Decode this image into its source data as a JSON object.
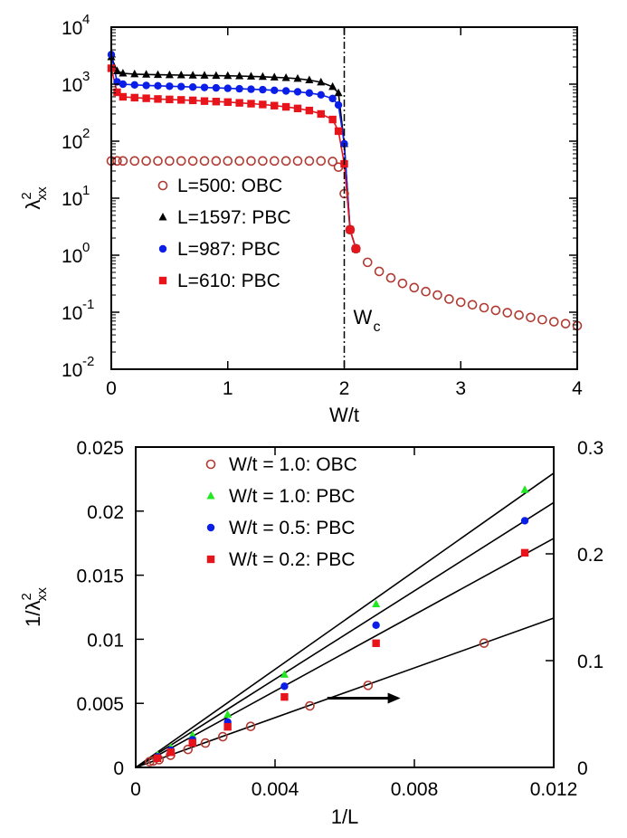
{
  "chart_data": [
    {
      "type": "scatter",
      "xlabel": "W/t",
      "ylabel": {
        "base": "λ",
        "sup": "2",
        "sub": "xx"
      },
      "xlim": [
        0,
        4
      ],
      "ylim_log10": [
        -2,
        4
      ],
      "log_y": true,
      "xticks": [
        {
          "v": 0,
          "label": "0"
        },
        {
          "v": 1,
          "label": "1"
        },
        {
          "v": 2,
          "label": "2"
        },
        {
          "v": 3,
          "label": "3"
        },
        {
          "v": 4,
          "label": "4"
        }
      ],
      "yticks": [
        {
          "e": -2,
          "label": "-2"
        },
        {
          "e": -1,
          "label": "-1"
        },
        {
          "e": 0,
          "label": "0"
        },
        {
          "e": 1,
          "label": "1"
        },
        {
          "e": 2,
          "label": "2"
        },
        {
          "e": 3,
          "label": "3"
        },
        {
          "e": 4,
          "label": "4"
        }
      ],
      "ytick_base": "10",
      "vline": {
        "x": 2.0,
        "label": "W",
        "sub": "c",
        "style": "dash-dot"
      },
      "legend_position": "left-middle",
      "series": [
        {
          "name": "L=500: OBC",
          "marker": "open-circle",
          "color": "#b03a32",
          "line": false,
          "points": [
            [
              0,
              45
            ],
            [
              0.05,
              45
            ],
            [
              0.1,
              45
            ],
            [
              0.2,
              45
            ],
            [
              0.3,
              45
            ],
            [
              0.4,
              45
            ],
            [
              0.5,
              45
            ],
            [
              0.6,
              45
            ],
            [
              0.7,
              45
            ],
            [
              0.8,
              45
            ],
            [
              0.9,
              45
            ],
            [
              1.0,
              45
            ],
            [
              1.1,
              45
            ],
            [
              1.2,
              45
            ],
            [
              1.3,
              45
            ],
            [
              1.4,
              45
            ],
            [
              1.5,
              45
            ],
            [
              1.6,
              45
            ],
            [
              1.7,
              45
            ],
            [
              1.8,
              45
            ],
            [
              1.9,
              44
            ],
            [
              1.95,
              35
            ],
            [
              2.0,
              12
            ],
            [
              2.05,
              2.8
            ],
            [
              2.1,
              1.3
            ],
            [
              2.2,
              0.75
            ],
            [
              2.3,
              0.52
            ],
            [
              2.4,
              0.4
            ],
            [
              2.5,
              0.32
            ],
            [
              2.6,
              0.27
            ],
            [
              2.7,
              0.23
            ],
            [
              2.8,
              0.2
            ],
            [
              2.9,
              0.17
            ],
            [
              3.0,
              0.15
            ],
            [
              3.1,
              0.135
            ],
            [
              3.2,
              0.12
            ],
            [
              3.3,
              0.108
            ],
            [
              3.4,
              0.098
            ],
            [
              3.5,
              0.089
            ],
            [
              3.6,
              0.081
            ],
            [
              3.7,
              0.074
            ],
            [
              3.8,
              0.068
            ],
            [
              3.9,
              0.063
            ],
            [
              4.0,
              0.058
            ]
          ]
        },
        {
          "name": "L=1597: PBC",
          "marker": "filled-triangle",
          "color": "#000000",
          "line": true,
          "points": [
            [
              0,
              3000
            ],
            [
              0.05,
              1700
            ],
            [
              0.1,
              1550
            ],
            [
              0.2,
              1500
            ],
            [
              0.3,
              1480
            ],
            [
              0.4,
              1460
            ],
            [
              0.5,
              1450
            ],
            [
              0.6,
              1440
            ],
            [
              0.7,
              1430
            ],
            [
              0.8,
              1420
            ],
            [
              0.9,
              1410
            ],
            [
              1.0,
              1400
            ],
            [
              1.1,
              1390
            ],
            [
              1.2,
              1370
            ],
            [
              1.3,
              1350
            ],
            [
              1.4,
              1320
            ],
            [
              1.5,
              1290
            ],
            [
              1.6,
              1250
            ],
            [
              1.7,
              1180
            ],
            [
              1.8,
              1080
            ],
            [
              1.9,
              900
            ],
            [
              1.95,
              700
            ],
            [
              2.0,
              90
            ],
            [
              2.05,
              2.8
            ],
            [
              2.1,
              1.3
            ]
          ]
        },
        {
          "name": "L=987: PBC",
          "marker": "filled-circle",
          "color": "#0a1ee8",
          "line": true,
          "points": [
            [
              0,
              3300
            ],
            [
              0.05,
              1100
            ],
            [
              0.1,
              1000
            ],
            [
              0.2,
              970
            ],
            [
              0.3,
              950
            ],
            [
              0.4,
              935
            ],
            [
              0.5,
              920
            ],
            [
              0.6,
              905
            ],
            [
              0.7,
              890
            ],
            [
              0.8,
              875
            ],
            [
              0.9,
              860
            ],
            [
              1.0,
              845
            ],
            [
              1.1,
              830
            ],
            [
              1.2,
              815
            ],
            [
              1.3,
              800
            ],
            [
              1.4,
              780
            ],
            [
              1.5,
              760
            ],
            [
              1.6,
              735
            ],
            [
              1.7,
              700
            ],
            [
              1.8,
              650
            ],
            [
              1.9,
              560
            ],
            [
              1.95,
              430
            ],
            [
              2.0,
              90
            ],
            [
              2.05,
              2.8
            ],
            [
              2.1,
              1.3
            ]
          ]
        },
        {
          "name": "L=610: PBC",
          "marker": "filled-square",
          "color": "#e8141c",
          "line": true,
          "points": [
            [
              0,
              1900
            ],
            [
              0.05,
              720
            ],
            [
              0.1,
              600
            ],
            [
              0.2,
              580
            ],
            [
              0.3,
              565
            ],
            [
              0.4,
              550
            ],
            [
              0.5,
              540
            ],
            [
              0.6,
              530
            ],
            [
              0.7,
              520
            ],
            [
              0.8,
              505
            ],
            [
              0.9,
              495
            ],
            [
              1.0,
              485
            ],
            [
              1.1,
              470
            ],
            [
              1.2,
              455
            ],
            [
              1.3,
              440
            ],
            [
              1.4,
              420
            ],
            [
              1.5,
              400
            ],
            [
              1.6,
              375
            ],
            [
              1.7,
              345
            ],
            [
              1.8,
              300
            ],
            [
              1.9,
              240
            ],
            [
              1.95,
              150
            ],
            [
              2.0,
              40
            ],
            [
              2.05,
              2.8
            ],
            [
              2.1,
              1.3
            ]
          ]
        }
      ]
    },
    {
      "type": "scatter",
      "xlabel": "1/L",
      "ylabel": {
        "base": "1/λ",
        "sup": "2",
        "sub": "xx"
      },
      "xlim": [
        0,
        0.012
      ],
      "ylim": [
        0,
        0.025
      ],
      "y2lim": [
        0,
        0.3
      ],
      "xticks": [
        {
          "v": 0,
          "label": "0"
        },
        {
          "v": 0.004,
          "label": "0.004"
        },
        {
          "v": 0.008,
          "label": "0.008"
        },
        {
          "v": 0.012,
          "label": "0.012"
        }
      ],
      "yticks": [
        {
          "v": 0,
          "label": "0"
        },
        {
          "v": 0.005,
          "label": "0.005"
        },
        {
          "v": 0.01,
          "label": "0.01"
        },
        {
          "v": 0.015,
          "label": "0.015"
        },
        {
          "v": 0.02,
          "label": "0.02"
        },
        {
          "v": 0.025,
          "label": "0.025"
        }
      ],
      "y2ticks": [
        {
          "v": 0,
          "label": "0"
        },
        {
          "v": 0.1,
          "label": "0.1"
        },
        {
          "v": 0.2,
          "label": "0.2"
        },
        {
          "v": 0.3,
          "label": "0.3"
        }
      ],
      "arrow": {
        "from": [
          0.0055,
          0.0054
        ],
        "to": [
          0.0076,
          0.0054
        ],
        "axis": "right"
      },
      "legend_position": "top",
      "series": [
        {
          "name": "W/t = 1.0: OBC",
          "marker": "open-circle",
          "color": "#b03a32",
          "axis": "left",
          "points": [
            [
              0.0004,
              0.00045
            ],
            [
              0.0005,
              0.0005
            ],
            [
              0.00067,
              0.0006
            ],
            [
              0.001,
              0.00095
            ],
            [
              0.0015,
              0.0014
            ],
            [
              0.002,
              0.0019
            ],
            [
              0.0025,
              0.0024
            ],
            [
              0.0033,
              0.0032
            ],
            [
              0.005,
              0.0048
            ],
            [
              0.00667,
              0.0064
            ],
            [
              0.01,
              0.0097
            ]
          ],
          "fit": [
            [
              0,
              0
            ],
            [
              0.012,
              0.01165
            ]
          ]
        },
        {
          "name": "W/t = 1.0: PBC",
          "marker": "filled-triangle",
          "color": "#22e822",
          "axis": "right",
          "points": [
            [
              0.000626,
              0.0118
            ],
            [
              0.00101,
              0.0185
            ],
            [
              0.00163,
              0.0302
            ],
            [
              0.00264,
              0.0495
            ],
            [
              0.00427,
              0.087
            ],
            [
              0.0069,
              0.153
            ],
            [
              0.01117,
              0.26
            ]
          ],
          "fit": [
            [
              0,
              0
            ],
            [
              0.012,
              0.2756
            ]
          ]
        },
        {
          "name": "W/t = 0.5: PBC",
          "marker": "filled-circle",
          "color": "#0a1ee8",
          "axis": "right",
          "points": [
            [
              0.000626,
              0.0099
            ],
            [
              0.00101,
              0.016
            ],
            [
              0.00163,
              0.0259
            ],
            [
              0.00264,
              0.0425
            ],
            [
              0.00427,
              0.076
            ],
            [
              0.0069,
              0.1332
            ],
            [
              0.01117,
              0.231
            ]
          ],
          "fit": [
            [
              0,
              0
            ],
            [
              0.012,
              0.248
            ]
          ]
        },
        {
          "name": "W/t = 0.2: PBC",
          "marker": "filled-square",
          "color": "#e8141c",
          "axis": "right",
          "points": [
            [
              0.000626,
              0.0086
            ],
            [
              0.00101,
              0.0142
            ],
            [
              0.00163,
              0.023
            ],
            [
              0.00264,
              0.038
            ],
            [
              0.00427,
              0.066
            ],
            [
              0.0069,
              0.1163
            ],
            [
              0.01117,
              0.201
            ]
          ],
          "fit": [
            [
              0,
              0
            ],
            [
              0.012,
              0.2145
            ]
          ]
        }
      ]
    }
  ]
}
